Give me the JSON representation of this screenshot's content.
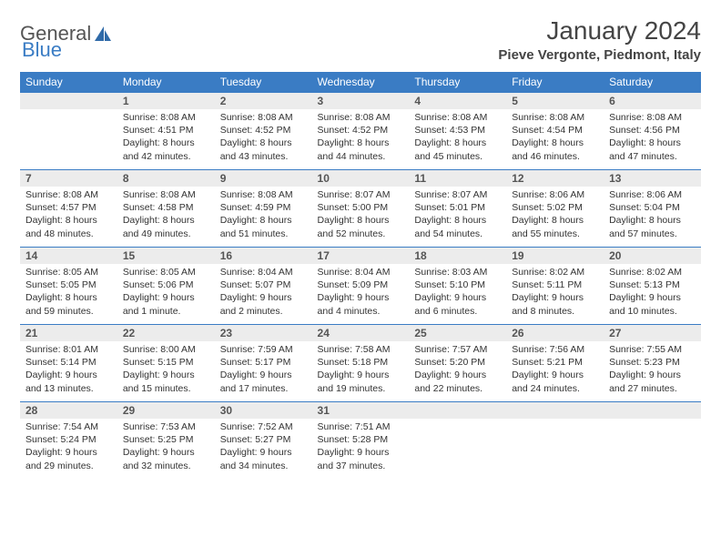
{
  "logo": {
    "part1": "General",
    "part2": "Blue"
  },
  "title": "January 2024",
  "location": "Pieve Vergonte, Piedmont, Italy",
  "style": {
    "header_bg": "#3a7cc4",
    "header_fg": "#ffffff",
    "daynum_bg": "#ececec",
    "border_color": "#3a7cc4",
    "page_bg": "#ffffff",
    "text_color": "#333333",
    "title_fontsize": 28,
    "location_fontsize": 15,
    "cell_fontsize": 10.5,
    "daynum_fontsize": 12
  },
  "weekdays": [
    "Sunday",
    "Monday",
    "Tuesday",
    "Wednesday",
    "Thursday",
    "Friday",
    "Saturday"
  ],
  "weeks": [
    [
      {
        "blank": true
      },
      {
        "n": "1",
        "sr": "Sunrise: 8:08 AM",
        "ss": "Sunset: 4:51 PM",
        "d1": "Daylight: 8 hours",
        "d2": "and 42 minutes."
      },
      {
        "n": "2",
        "sr": "Sunrise: 8:08 AM",
        "ss": "Sunset: 4:52 PM",
        "d1": "Daylight: 8 hours",
        "d2": "and 43 minutes."
      },
      {
        "n": "3",
        "sr": "Sunrise: 8:08 AM",
        "ss": "Sunset: 4:52 PM",
        "d1": "Daylight: 8 hours",
        "d2": "and 44 minutes."
      },
      {
        "n": "4",
        "sr": "Sunrise: 8:08 AM",
        "ss": "Sunset: 4:53 PM",
        "d1": "Daylight: 8 hours",
        "d2": "and 45 minutes."
      },
      {
        "n": "5",
        "sr": "Sunrise: 8:08 AM",
        "ss": "Sunset: 4:54 PM",
        "d1": "Daylight: 8 hours",
        "d2": "and 46 minutes."
      },
      {
        "n": "6",
        "sr": "Sunrise: 8:08 AM",
        "ss": "Sunset: 4:56 PM",
        "d1": "Daylight: 8 hours",
        "d2": "and 47 minutes."
      }
    ],
    [
      {
        "n": "7",
        "sr": "Sunrise: 8:08 AM",
        "ss": "Sunset: 4:57 PM",
        "d1": "Daylight: 8 hours",
        "d2": "and 48 minutes."
      },
      {
        "n": "8",
        "sr": "Sunrise: 8:08 AM",
        "ss": "Sunset: 4:58 PM",
        "d1": "Daylight: 8 hours",
        "d2": "and 49 minutes."
      },
      {
        "n": "9",
        "sr": "Sunrise: 8:08 AM",
        "ss": "Sunset: 4:59 PM",
        "d1": "Daylight: 8 hours",
        "d2": "and 51 minutes."
      },
      {
        "n": "10",
        "sr": "Sunrise: 8:07 AM",
        "ss": "Sunset: 5:00 PM",
        "d1": "Daylight: 8 hours",
        "d2": "and 52 minutes."
      },
      {
        "n": "11",
        "sr": "Sunrise: 8:07 AM",
        "ss": "Sunset: 5:01 PM",
        "d1": "Daylight: 8 hours",
        "d2": "and 54 minutes."
      },
      {
        "n": "12",
        "sr": "Sunrise: 8:06 AM",
        "ss": "Sunset: 5:02 PM",
        "d1": "Daylight: 8 hours",
        "d2": "and 55 minutes."
      },
      {
        "n": "13",
        "sr": "Sunrise: 8:06 AM",
        "ss": "Sunset: 5:04 PM",
        "d1": "Daylight: 8 hours",
        "d2": "and 57 minutes."
      }
    ],
    [
      {
        "n": "14",
        "sr": "Sunrise: 8:05 AM",
        "ss": "Sunset: 5:05 PM",
        "d1": "Daylight: 8 hours",
        "d2": "and 59 minutes."
      },
      {
        "n": "15",
        "sr": "Sunrise: 8:05 AM",
        "ss": "Sunset: 5:06 PM",
        "d1": "Daylight: 9 hours",
        "d2": "and 1 minute."
      },
      {
        "n": "16",
        "sr": "Sunrise: 8:04 AM",
        "ss": "Sunset: 5:07 PM",
        "d1": "Daylight: 9 hours",
        "d2": "and 2 minutes."
      },
      {
        "n": "17",
        "sr": "Sunrise: 8:04 AM",
        "ss": "Sunset: 5:09 PM",
        "d1": "Daylight: 9 hours",
        "d2": "and 4 minutes."
      },
      {
        "n": "18",
        "sr": "Sunrise: 8:03 AM",
        "ss": "Sunset: 5:10 PM",
        "d1": "Daylight: 9 hours",
        "d2": "and 6 minutes."
      },
      {
        "n": "19",
        "sr": "Sunrise: 8:02 AM",
        "ss": "Sunset: 5:11 PM",
        "d1": "Daylight: 9 hours",
        "d2": "and 8 minutes."
      },
      {
        "n": "20",
        "sr": "Sunrise: 8:02 AM",
        "ss": "Sunset: 5:13 PM",
        "d1": "Daylight: 9 hours",
        "d2": "and 10 minutes."
      }
    ],
    [
      {
        "n": "21",
        "sr": "Sunrise: 8:01 AM",
        "ss": "Sunset: 5:14 PM",
        "d1": "Daylight: 9 hours",
        "d2": "and 13 minutes."
      },
      {
        "n": "22",
        "sr": "Sunrise: 8:00 AM",
        "ss": "Sunset: 5:15 PM",
        "d1": "Daylight: 9 hours",
        "d2": "and 15 minutes."
      },
      {
        "n": "23",
        "sr": "Sunrise: 7:59 AM",
        "ss": "Sunset: 5:17 PM",
        "d1": "Daylight: 9 hours",
        "d2": "and 17 minutes."
      },
      {
        "n": "24",
        "sr": "Sunrise: 7:58 AM",
        "ss": "Sunset: 5:18 PM",
        "d1": "Daylight: 9 hours",
        "d2": "and 19 minutes."
      },
      {
        "n": "25",
        "sr": "Sunrise: 7:57 AM",
        "ss": "Sunset: 5:20 PM",
        "d1": "Daylight: 9 hours",
        "d2": "and 22 minutes."
      },
      {
        "n": "26",
        "sr": "Sunrise: 7:56 AM",
        "ss": "Sunset: 5:21 PM",
        "d1": "Daylight: 9 hours",
        "d2": "and 24 minutes."
      },
      {
        "n": "27",
        "sr": "Sunrise: 7:55 AM",
        "ss": "Sunset: 5:23 PM",
        "d1": "Daylight: 9 hours",
        "d2": "and 27 minutes."
      }
    ],
    [
      {
        "n": "28",
        "sr": "Sunrise: 7:54 AM",
        "ss": "Sunset: 5:24 PM",
        "d1": "Daylight: 9 hours",
        "d2": "and 29 minutes."
      },
      {
        "n": "29",
        "sr": "Sunrise: 7:53 AM",
        "ss": "Sunset: 5:25 PM",
        "d1": "Daylight: 9 hours",
        "d2": "and 32 minutes."
      },
      {
        "n": "30",
        "sr": "Sunrise: 7:52 AM",
        "ss": "Sunset: 5:27 PM",
        "d1": "Daylight: 9 hours",
        "d2": "and 34 minutes."
      },
      {
        "n": "31",
        "sr": "Sunrise: 7:51 AM",
        "ss": "Sunset: 5:28 PM",
        "d1": "Daylight: 9 hours",
        "d2": "and 37 minutes."
      },
      {
        "blank": true
      },
      {
        "blank": true
      },
      {
        "blank": true
      }
    ]
  ]
}
